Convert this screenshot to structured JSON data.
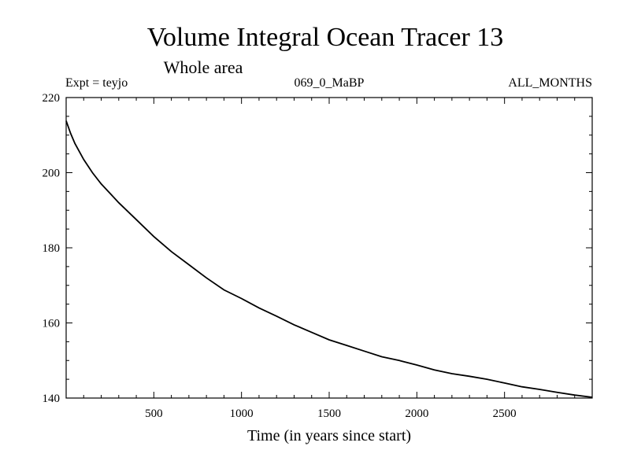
{
  "chart_data": {
    "type": "line",
    "title": "Volume Integral Ocean Tracer 13",
    "subtitle": "Whole area",
    "annotations": {
      "left": "Expt = teyjo",
      "center": "069_0_MaBP",
      "right": "ALL_MONTHS"
    },
    "xlabel": "Time (in years since start)",
    "ylabel": "",
    "xlim": [
      0,
      3000
    ],
    "ylim": [
      140,
      220
    ],
    "xticks": [
      500,
      1000,
      1500,
      2000,
      2500
    ],
    "yticks": [
      140,
      160,
      180,
      200,
      220
    ],
    "grid": false,
    "series": [
      {
        "x": [
          0,
          25,
          50,
          100,
          150,
          200,
          250,
          300,
          400,
          500,
          600,
          700,
          800,
          900,
          1000,
          1100,
          1200,
          1300,
          1400,
          1500,
          1600,
          1700,
          1800,
          1900,
          2000,
          2100,
          2200,
          2300,
          2400,
          2500,
          2600,
          2700,
          2800,
          2900,
          3000
        ],
        "values": [
          213.8,
          210.5,
          207.8,
          203.5,
          200.0,
          197.0,
          194.5,
          192.0,
          187.5,
          183.0,
          179.0,
          175.5,
          172.0,
          168.8,
          166.5,
          164.0,
          161.8,
          159.5,
          157.5,
          155.5,
          154.0,
          152.5,
          151.0,
          150.0,
          148.8,
          147.5,
          146.5,
          145.8,
          145.0,
          144.0,
          143.0,
          142.3,
          141.5,
          140.8,
          140.2
        ]
      }
    ]
  }
}
